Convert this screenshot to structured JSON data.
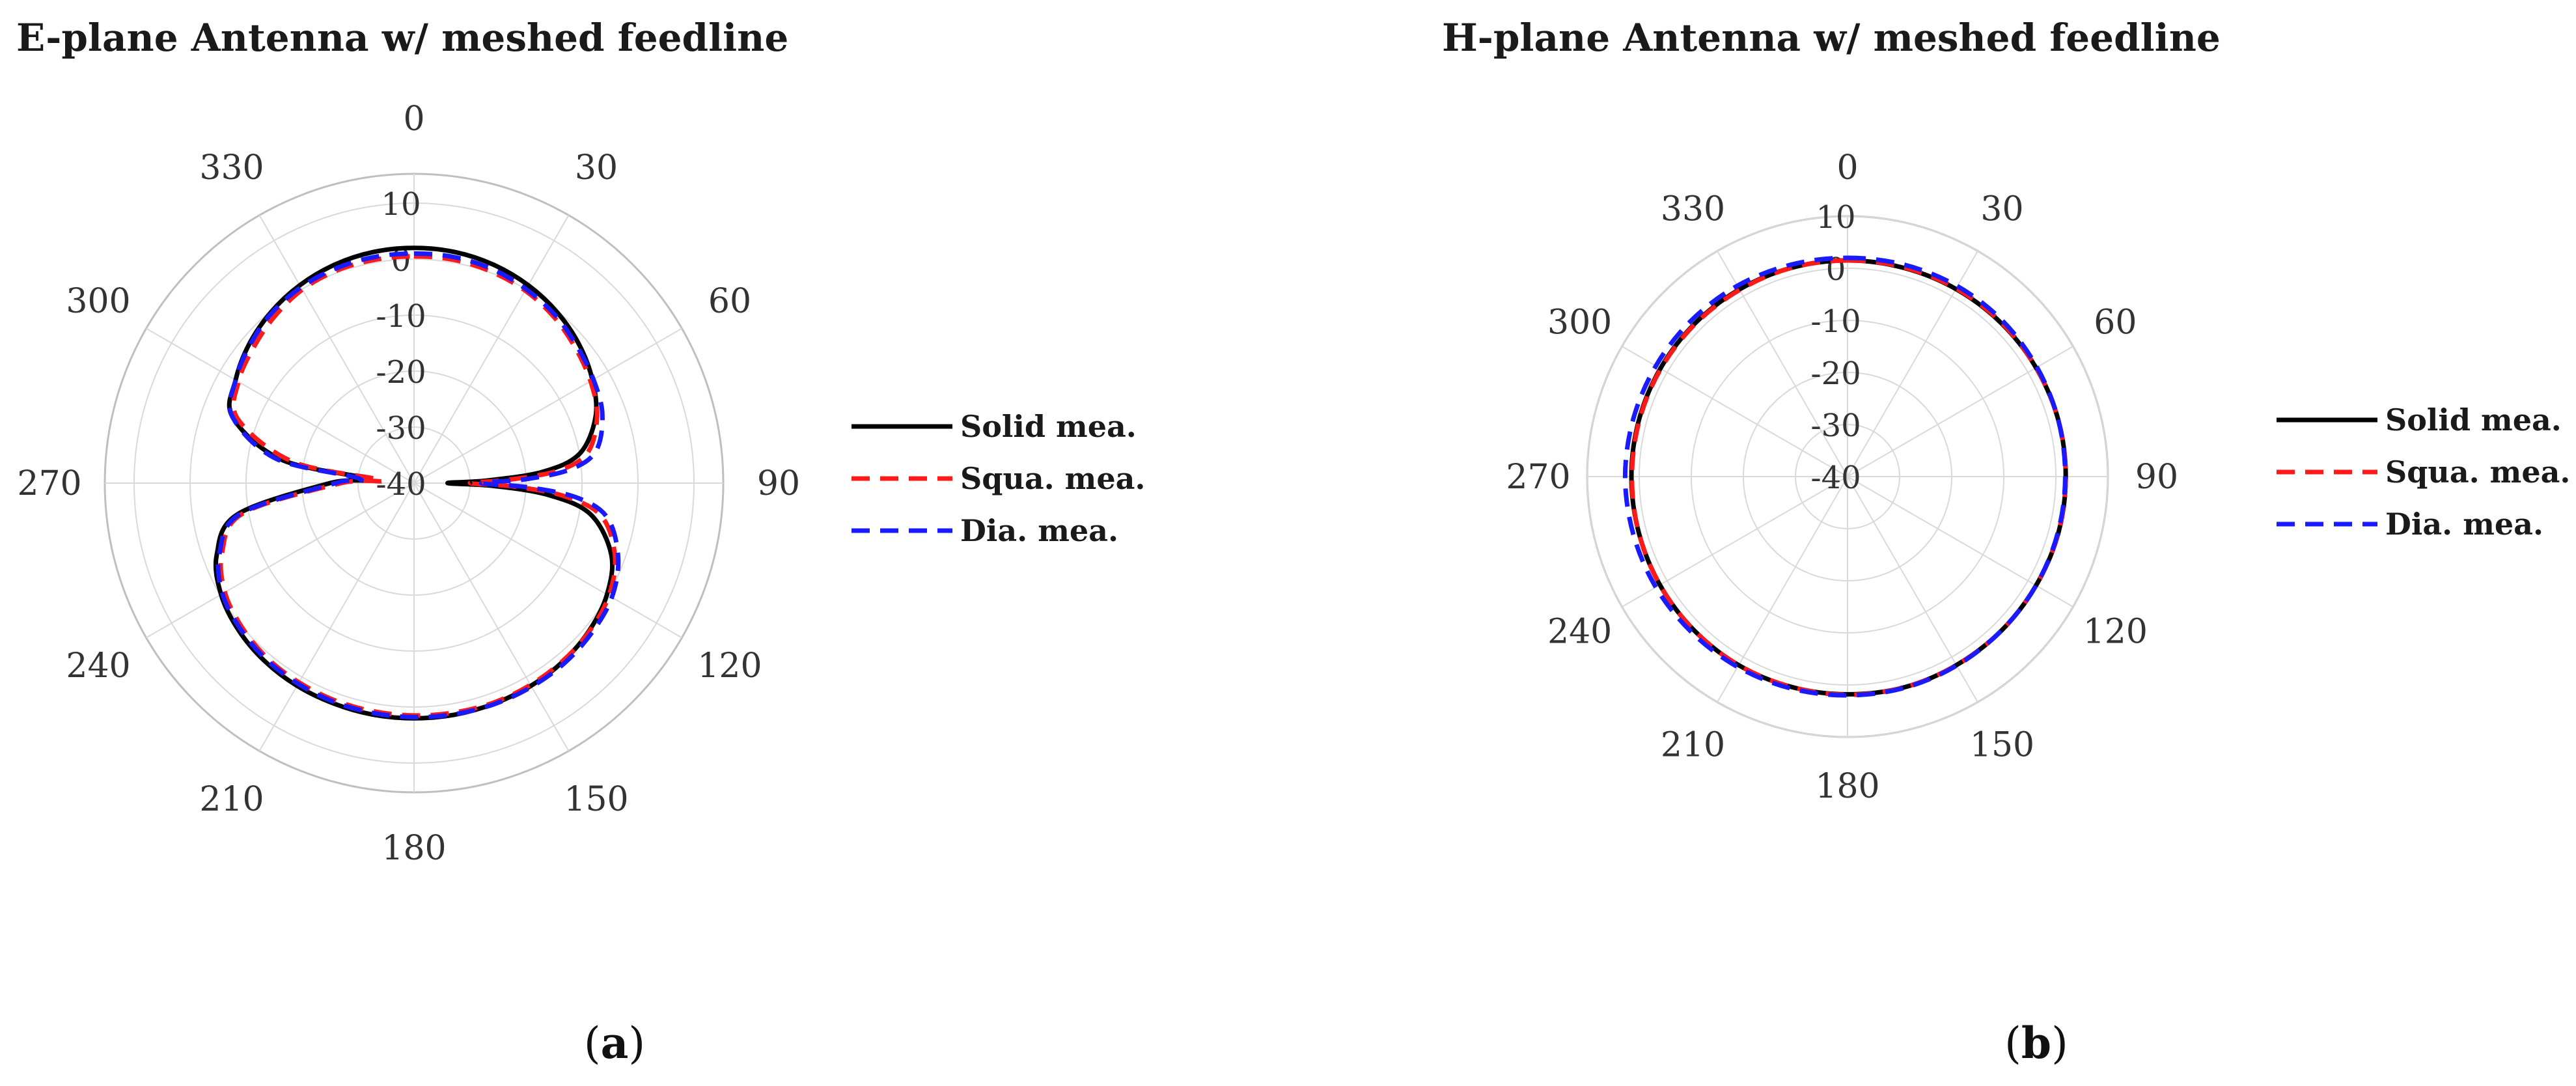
{
  "chart_data": [
    {
      "type": "polar-line",
      "title": "E-plane Antenna w/ meshed feedline",
      "caption": "a",
      "angle_ticks": [
        "0",
        "30",
        "60",
        "90",
        "120",
        "150",
        "180",
        "210",
        "240",
        "270",
        "300",
        "330"
      ],
      "angle_values": [
        0,
        30,
        60,
        90,
        120,
        150,
        180,
        210,
        240,
        270,
        300,
        330
      ],
      "radial_ticks": [
        10,
        0,
        -10,
        -20,
        -30,
        -40
      ],
      "radial_range": [
        -40,
        10
      ],
      "grid": true,
      "legend_position": "right",
      "angle_samples": [
        0,
        10,
        20,
        30,
        40,
        50,
        60,
        70,
        80,
        85,
        88,
        90,
        92,
        95,
        100,
        110,
        120,
        130,
        140,
        150,
        160,
        170,
        180,
        190,
        200,
        210,
        220,
        230,
        240,
        250,
        260,
        270,
        275,
        280,
        290,
        300,
        310,
        320,
        330,
        340,
        350
      ],
      "series": [
        {
          "name": "Solid mea.",
          "color": "#000000",
          "dash": "solid",
          "values": [
            2,
            1.9,
            1.5,
            0.8,
            -0.2,
            -1.5,
            -3.2,
            -5.5,
            -10,
            -17,
            -27,
            -34,
            -26,
            -16,
            -8,
            -2.5,
            -0.2,
            0.9,
            1.5,
            1.8,
            1.9,
            2,
            2,
            2,
            1.9,
            1.8,
            1.5,
            0.9,
            -0.2,
            -2.5,
            -8,
            -25,
            -32,
            -16,
            -5.5,
            -3.2,
            -1.5,
            -0.2,
            0.8,
            1.5,
            1.9
          ]
        },
        {
          "name": "Squa. mea.",
          "color": "#ff1a1a",
          "dash": "dashed",
          "values": [
            0.5,
            0.5,
            0.2,
            -0.3,
            -1.2,
            -2.4,
            -3.6,
            -5.2,
            -8.5,
            -14,
            -23,
            -30,
            -22,
            -13,
            -6,
            -1.8,
            0.2,
            1,
            1.4,
            1.6,
            1.7,
            1.6,
            1.5,
            1.4,
            1.3,
            1.1,
            0.8,
            0.1,
            -1,
            -3.5,
            -9,
            -27,
            -34,
            -18,
            -6.5,
            -3.8,
            -2.5,
            -1.2,
            -0.1,
            0.4,
            0.5
          ]
        },
        {
          "name": "Dia. mea.",
          "color": "#1a1aff",
          "dash": "dashed",
          "values": [
            1,
            1,
            0.7,
            0,
            -0.8,
            -2,
            -3,
            -4.2,
            -7,
            -12,
            -20,
            -28,
            -20,
            -11,
            -5,
            -1.2,
            0.8,
            1.5,
            1.9,
            2,
            2,
            1.9,
            1.8,
            1.7,
            1.6,
            1.4,
            1.1,
            0.5,
            -0.5,
            -3,
            -8.5,
            -26,
            -30,
            -15,
            -5.5,
            -3.2,
            -1.7,
            -0.4,
            0.4,
            0.8,
            1
          ]
        }
      ]
    },
    {
      "type": "polar-line",
      "title": "H-plane Antenna w/ meshed feedline",
      "caption": "b",
      "angle_ticks": [
        "0",
        "30",
        "60",
        "90",
        "120",
        "150",
        "180",
        "210",
        "240",
        "270",
        "300",
        "330"
      ],
      "angle_values": [
        0,
        30,
        60,
        90,
        120,
        150,
        180,
        210,
        240,
        270,
        300,
        330
      ],
      "radial_ticks": [
        10,
        0,
        -10,
        -20,
        -30,
        -40
      ],
      "radial_range": [
        -40,
        10
      ],
      "grid": true,
      "legend_position": "right",
      "angle_samples": [
        0,
        15,
        30,
        45,
        60,
        75,
        90,
        105,
        120,
        135,
        150,
        165,
        180,
        195,
        210,
        225,
        240,
        255,
        270,
        285,
        300,
        315,
        330,
        345
      ],
      "series": [
        {
          "name": "Solid mea.",
          "color": "#000000",
          "dash": "solid",
          "values": [
            1.5,
            1.5,
            1.6,
            1.7,
            1.8,
            1.9,
            1.9,
            1.9,
            1.8,
            1.8,
            1.8,
            1.9,
            1.8,
            1.8,
            1.8,
            1.7,
            1.6,
            1.5,
            1.5,
            1.5,
            1.5,
            1.5,
            1.5,
            1.5
          ]
        },
        {
          "name": "Squa. mea.",
          "color": "#ff1a1a",
          "dash": "dashed",
          "values": [
            1.5,
            1.6,
            1.7,
            1.8,
            1.8,
            1.9,
            1.9,
            1.9,
            1.8,
            1.8,
            1.8,
            1.9,
            1.9,
            1.8,
            1.8,
            1.7,
            1.6,
            1.5,
            1.4,
            1.4,
            1.4,
            1.4,
            1.4,
            1.5
          ]
        },
        {
          "name": "Dia. mea.",
          "color": "#1a1aff",
          "dash": "dashed",
          "values": [
            2,
            2.1,
            2.2,
            2.2,
            2,
            1.9,
            1.8,
            1.8,
            1.8,
            1.8,
            1.9,
            2,
            2,
            2.1,
            2.2,
            2.3,
            2.5,
            2.6,
            2.7,
            2.6,
            2.5,
            2.4,
            2.3,
            2.1
          ]
        }
      ]
    }
  ]
}
